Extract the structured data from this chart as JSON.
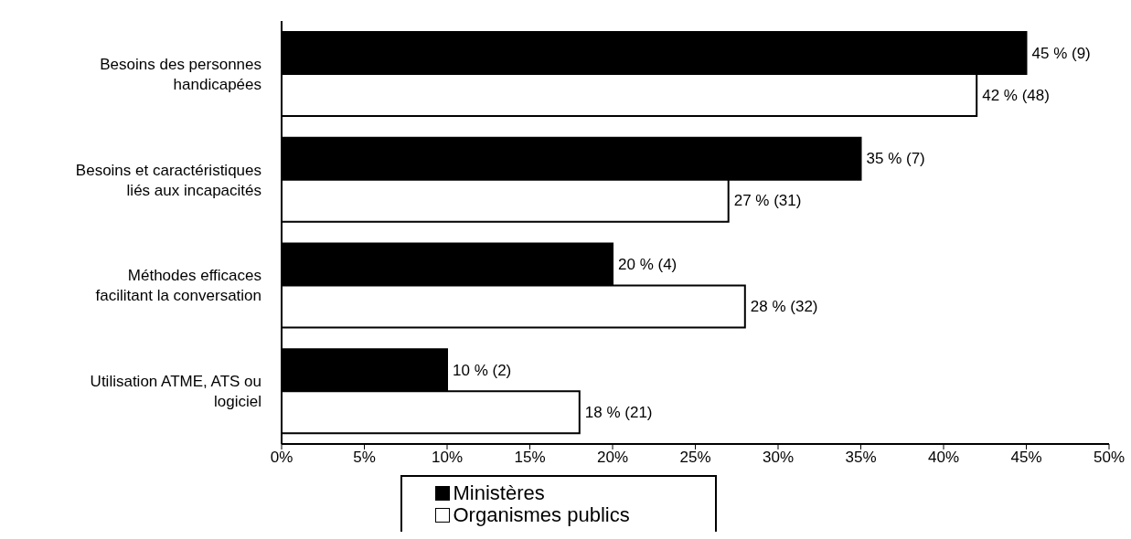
{
  "chart_data": {
    "type": "bar",
    "orientation": "horizontal",
    "categories": [
      "Besoins des personnes handicapées",
      "Besoins et caractéristiques liés aux incapacités",
      "Méthodes efficaces facilitant la conversation",
      "Utilisation ATME, ATS ou logiciel"
    ],
    "series": [
      {
        "name": "Ministères",
        "color": "#000000",
        "values": [
          45,
          35,
          20,
          10
        ],
        "value_labels": [
          "45 % (9)",
          "35 % (7)",
          "20 % (4)",
          "10 % (2)"
        ]
      },
      {
        "name": "Organismes publics",
        "color": "#ffffff",
        "values": [
          42,
          27,
          28,
          18
        ],
        "value_labels": [
          "42 % (48)",
          "27 % (31)",
          "28 % (32)",
          "18 % (21)"
        ]
      }
    ],
    "xlim": [
      0,
      50
    ],
    "xticks": [
      {
        "value": 0,
        "label": "0%"
      },
      {
        "value": 5,
        "label": "5%"
      },
      {
        "value": 10,
        "label": "10%"
      },
      {
        "value": 15,
        "label": "15%"
      },
      {
        "value": 20,
        "label": "20%"
      },
      {
        "value": 25,
        "label": "25%"
      },
      {
        "value": 30,
        "label": "30%"
      },
      {
        "value": 35,
        "label": "35%"
      },
      {
        "value": 40,
        "label": "40%"
      },
      {
        "value": 45,
        "label": "45%"
      },
      {
        "value": 50,
        "label": "50%"
      }
    ],
    "grid": false,
    "legend": "bottom"
  }
}
